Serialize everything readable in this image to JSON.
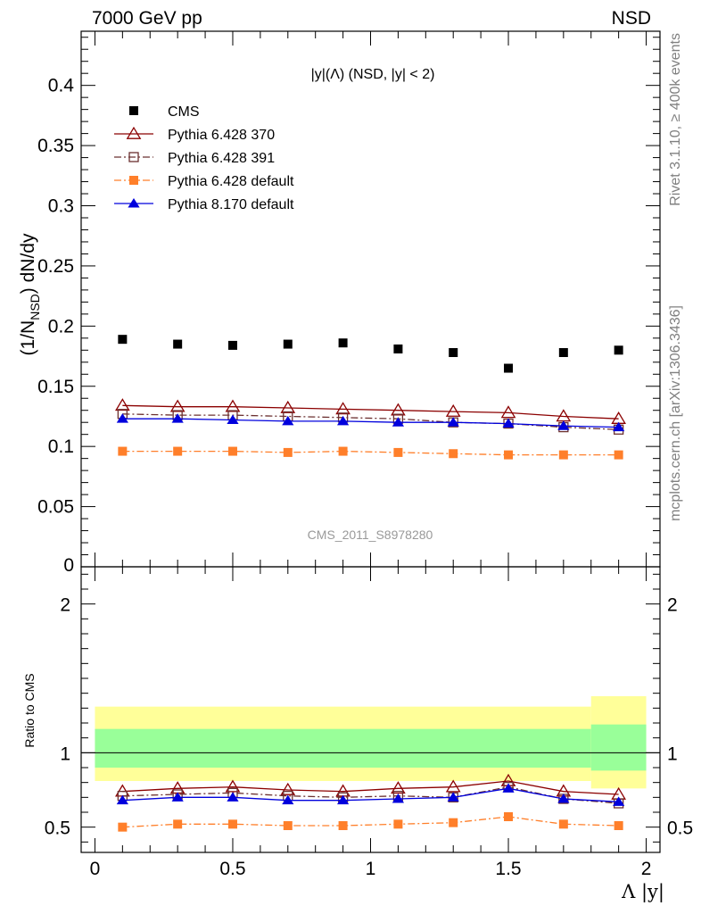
{
  "header": {
    "left": "7000 GeV pp",
    "right": "NSD"
  },
  "side_text": {
    "rivet": "Rivet 3.1.10, ≥ 400k events",
    "mcplots": "mcplots.cern.ch [arXiv:1306.3436]"
  },
  "watermark": "CMS_2011_S8978280",
  "plot_title": "|y|(Λ) (NSD, |y| < 2)",
  "chart_data": [
    {
      "type": "scatter",
      "panel": "main",
      "ylabel": "(1/N_NSD) dN/dy",
      "xlim": [
        -0.05,
        2.05
      ],
      "ylim": [
        0,
        0.445
      ],
      "yticks": [
        "0.05",
        "0.1",
        "0.15",
        "0.2",
        "0.25",
        "0.3",
        "0.35",
        "0.4"
      ],
      "ytick_values": [
        0.05,
        0.1,
        0.15,
        0.2,
        0.25,
        0.3,
        0.35,
        0.4
      ],
      "y_zero_label": "0",
      "legend_position": "top-left",
      "x": [
        0.1,
        0.3,
        0.5,
        0.7,
        0.9,
        1.1,
        1.3,
        1.5,
        1.7,
        1.9
      ],
      "series": [
        {
          "name": "CMS",
          "color": "#000000",
          "marker": "square-filled",
          "values": [
            0.189,
            0.185,
            0.184,
            0.185,
            0.186,
            0.181,
            0.178,
            0.165,
            0.178,
            0.18
          ]
        },
        {
          "name": "Pythia 6.428 370",
          "color": "#8b0000",
          "marker": "triangle-open",
          "line": "solid",
          "values": [
            0.134,
            0.133,
            0.133,
            0.132,
            0.131,
            0.13,
            0.129,
            0.128,
            0.125,
            0.123
          ]
        },
        {
          "name": "Pythia 6.428 391",
          "color": "#6b3030",
          "marker": "square-open",
          "line": "dashdot",
          "values": [
            0.127,
            0.126,
            0.126,
            0.125,
            0.124,
            0.123,
            0.12,
            0.119,
            0.116,
            0.114
          ]
        },
        {
          "name": "Pythia 6.428 default",
          "color": "#ff7f2a",
          "marker": "square-filled",
          "line": "dashdot",
          "values": [
            0.096,
            0.096,
            0.096,
            0.095,
            0.096,
            0.095,
            0.094,
            0.093,
            0.093,
            0.093
          ]
        },
        {
          "name": "Pythia 8.170 default",
          "color": "#0000dd",
          "marker": "triangle-filled",
          "line": "solid",
          "values": [
            0.123,
            0.123,
            0.122,
            0.121,
            0.121,
            0.12,
            0.12,
            0.119,
            0.117,
            0.116
          ]
        }
      ]
    },
    {
      "type": "line",
      "panel": "ratio",
      "ylabel": "Ratio to CMS",
      "xlabel": "Λ |y|",
      "xlim": [
        -0.05,
        2.05
      ],
      "ylim": [
        0.33,
        2.25
      ],
      "yticks_left": [
        "0.5",
        "1",
        "2"
      ],
      "yticks_right": [
        "0.5",
        "1",
        "2"
      ],
      "ytick_values": [
        0.5,
        1,
        2
      ],
      "xticks": [
        "0",
        "0.5",
        "1",
        "1.5",
        "2"
      ],
      "xtick_values": [
        0,
        0.5,
        1,
        1.5,
        2
      ],
      "x": [
        0.1,
        0.3,
        0.5,
        0.7,
        0.9,
        1.1,
        1.3,
        1.5,
        1.7,
        1.9
      ],
      "bands": {
        "x_edges": [
          0.0,
          1.8,
          2.0
        ],
        "stat_green": [
          [
            0.9,
            1.16
          ],
          [
            0.88,
            1.19
          ]
        ],
        "total_yellow": [
          [
            0.81,
            1.31
          ],
          [
            0.76,
            1.38
          ]
        ],
        "colors": {
          "green": "#99ff99",
          "yellow": "#ffff99"
        }
      },
      "series": [
        {
          "name": "Pythia 6.428 370",
          "color": "#8b0000",
          "marker": "triangle-open",
          "line": "solid",
          "values": [
            0.74,
            0.76,
            0.77,
            0.75,
            0.74,
            0.76,
            0.77,
            0.81,
            0.74,
            0.72
          ]
        },
        {
          "name": "Pythia 6.428 391",
          "color": "#6b3030",
          "marker": "square-open",
          "line": "dashdot",
          "values": [
            0.71,
            0.72,
            0.73,
            0.71,
            0.7,
            0.71,
            0.7,
            0.77,
            0.69,
            0.66
          ]
        },
        {
          "name": "Pythia 6.428 default",
          "color": "#ff7f2a",
          "marker": "square-filled",
          "line": "dashdot",
          "values": [
            0.5,
            0.52,
            0.52,
            0.51,
            0.51,
            0.52,
            0.53,
            0.57,
            0.52,
            0.51
          ]
        },
        {
          "name": "Pythia 8.170 default",
          "color": "#0000dd",
          "marker": "triangle-filled",
          "line": "solid",
          "values": [
            0.68,
            0.7,
            0.7,
            0.68,
            0.68,
            0.69,
            0.7,
            0.76,
            0.69,
            0.67
          ]
        }
      ]
    }
  ]
}
